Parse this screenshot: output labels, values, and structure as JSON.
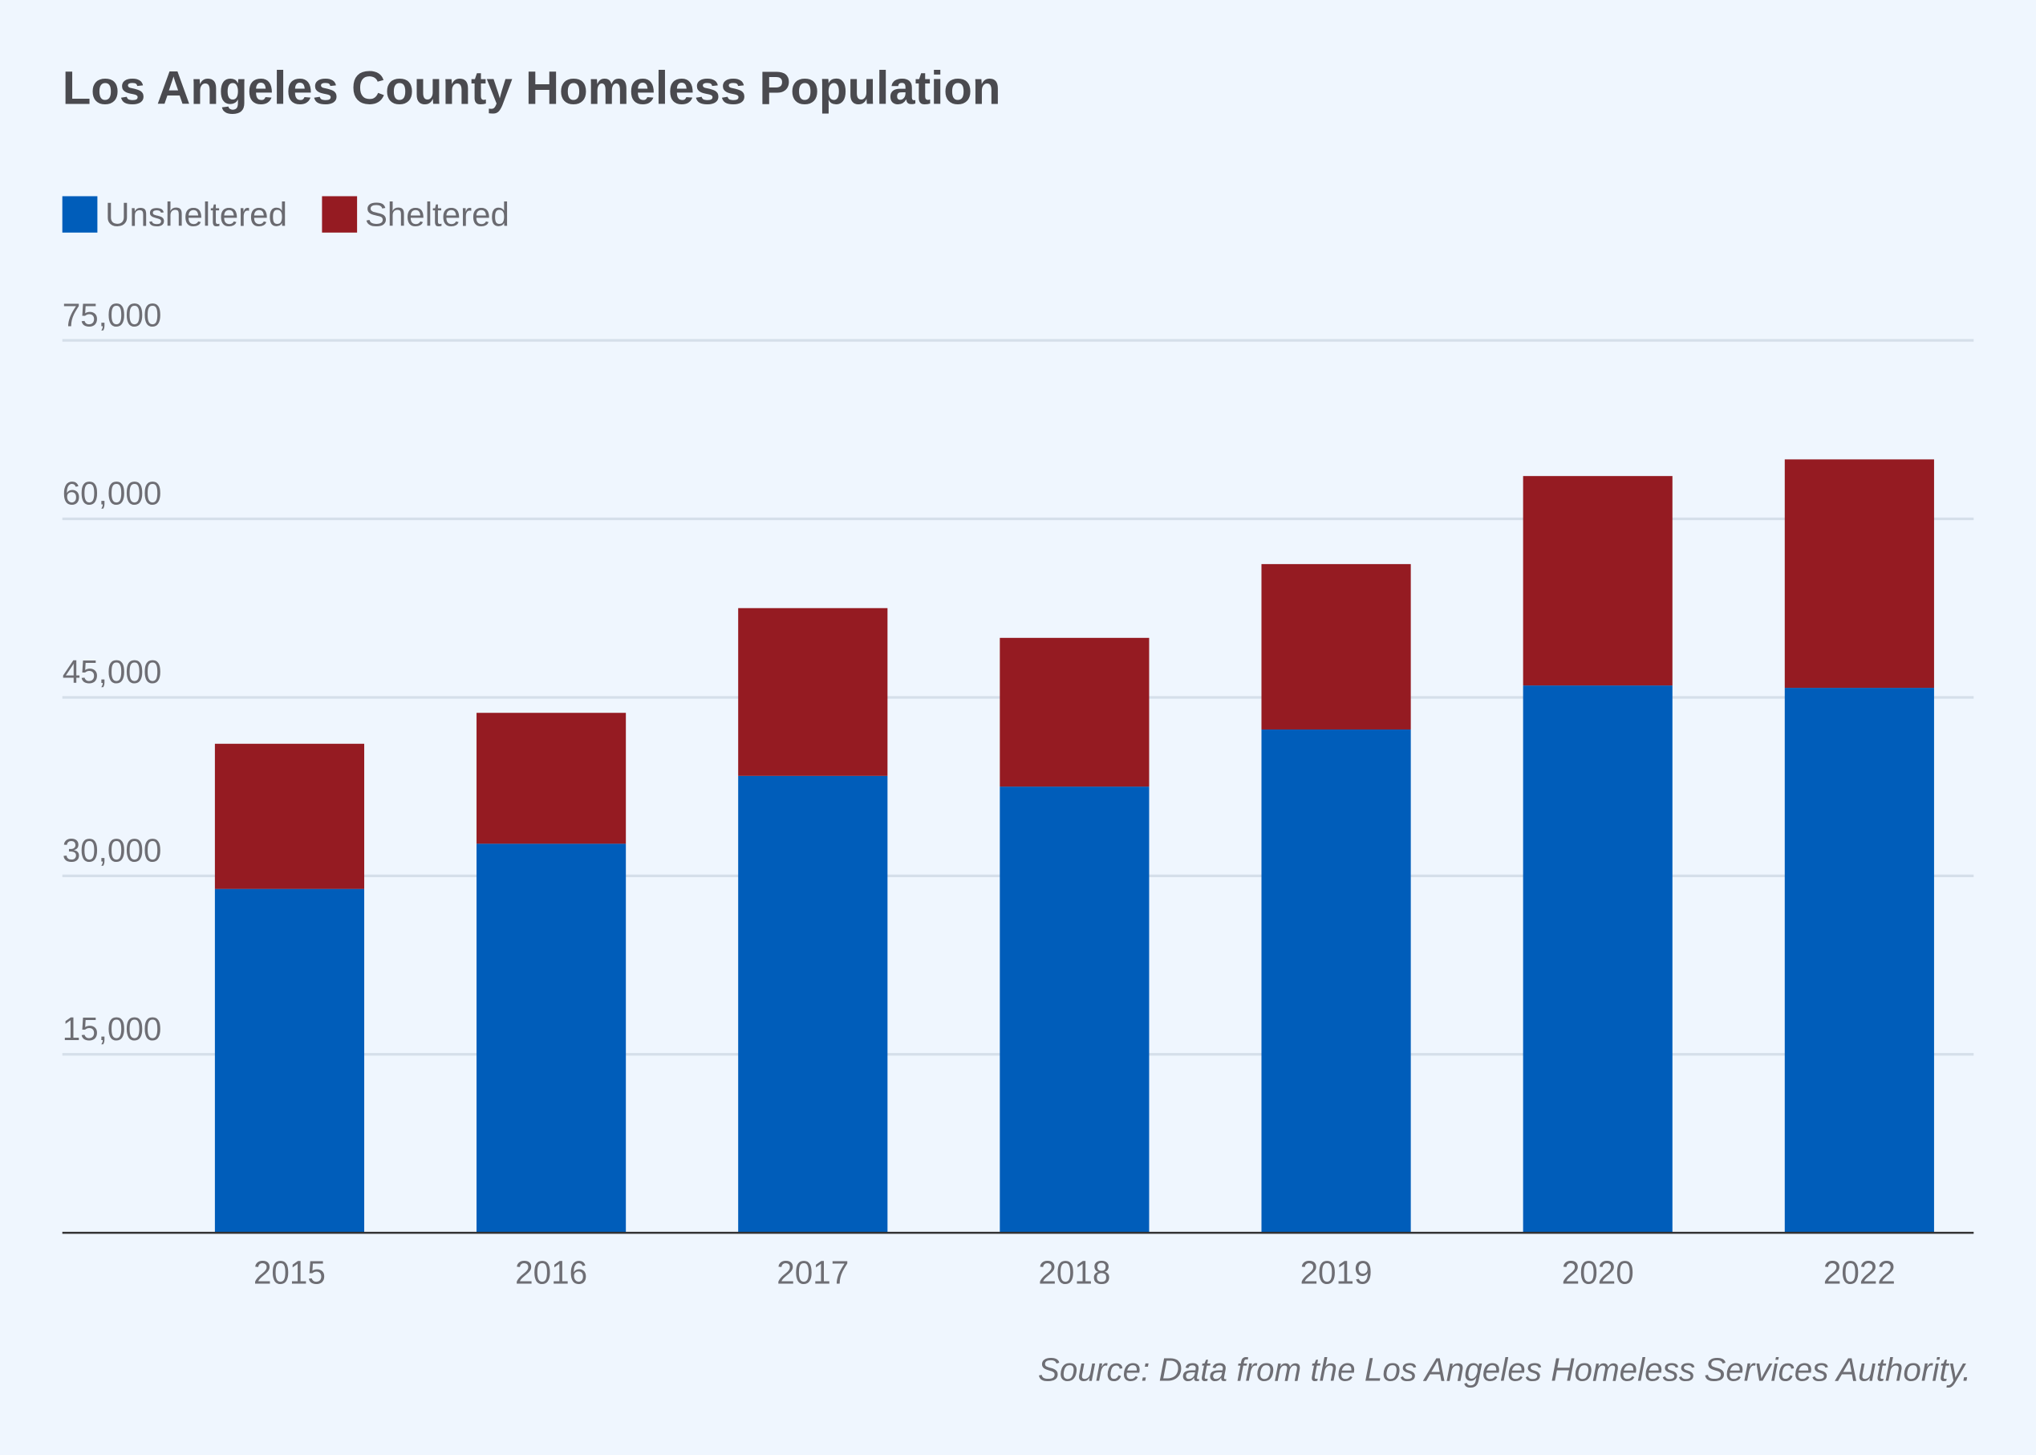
{
  "chart_data": {
    "type": "bar",
    "stacked": true,
    "title": "Los Angeles County Homeless Population",
    "categories": [
      "2015",
      "2016",
      "2017",
      "2018",
      "2019",
      "2020",
      "2022"
    ],
    "series": [
      {
        "name": "Unsheltered",
        "color": "#005dba",
        "values": [
          28900,
          32700,
          38400,
          37500,
          42300,
          46000,
          45800
        ]
      },
      {
        "name": "Sheltered",
        "color": "#951b22",
        "values": [
          12200,
          11000,
          14100,
          12500,
          13900,
          17600,
          19200
        ]
      }
    ],
    "ylim": [
      0,
      75000
    ],
    "yticks": [
      15000,
      30000,
      45000,
      60000,
      75000
    ],
    "ytick_labels": [
      "15,000",
      "30,000",
      "45,000",
      "60,000",
      "75,000"
    ],
    "xlabel": "",
    "ylabel": "",
    "grid": true,
    "legend": "top-left",
    "source": "Source: Data from the Los Angeles Homeless Services Authority."
  }
}
